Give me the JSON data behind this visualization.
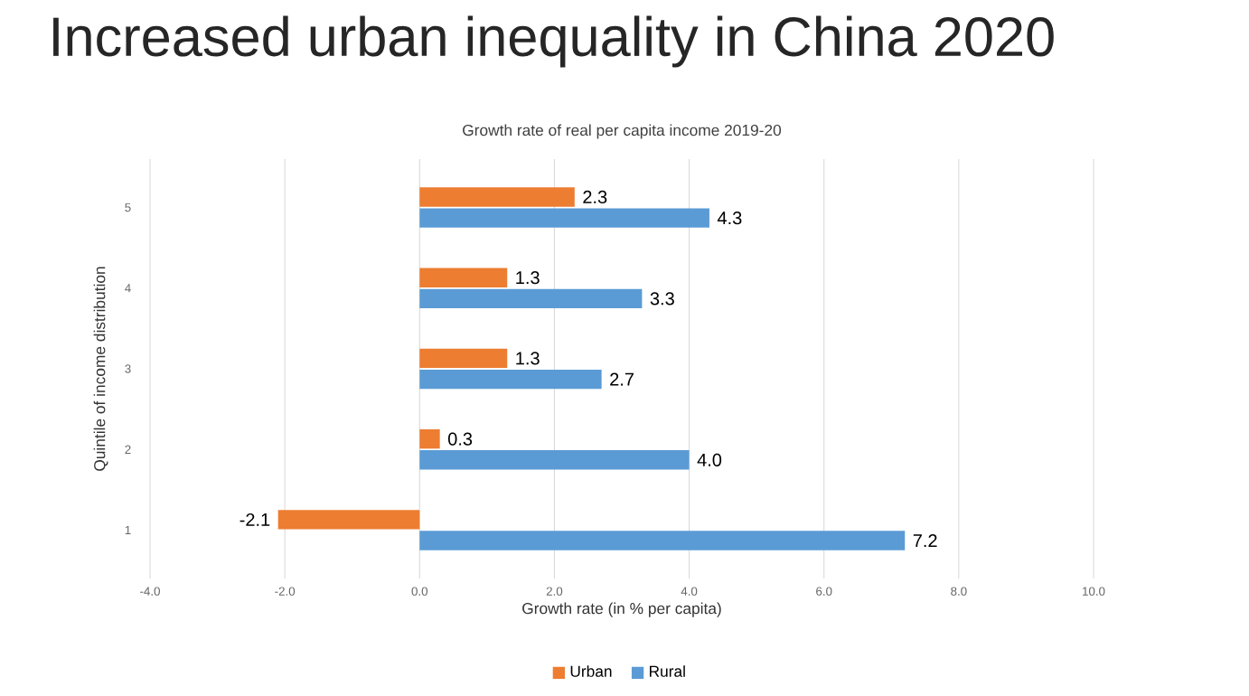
{
  "chart_data": {
    "type": "bar",
    "orientation": "horizontal",
    "title": "Increased urban inequality in China 2020",
    "subtitle": "Growth rate of real per capita income 2019-20",
    "xlabel": "Growth rate (in % per capita)",
    "ylabel": "Quintile of income distribution",
    "categories": [
      "5",
      "4",
      "3",
      "2",
      "1"
    ],
    "series": [
      {
        "name": "Urban",
        "color": "#ed7d31",
        "values": [
          2.3,
          1.3,
          1.3,
          0.3,
          -2.1
        ],
        "value_labels": [
          "2.3",
          "1.3",
          "1.3",
          "0.3",
          "-2.1"
        ]
      },
      {
        "name": "Rural",
        "color": "#5b9bd5",
        "values": [
          4.3,
          3.3,
          2.7,
          4.0,
          7.2
        ],
        "value_labels": [
          "4.3",
          "3.3",
          "2.7",
          "4.0",
          "7.2"
        ]
      }
    ],
    "xlim": [
      -4,
      10
    ],
    "xticks": [
      {
        "value": -4,
        "label": "-4.0"
      },
      {
        "value": -2,
        "label": "-2.0"
      },
      {
        "value": 0,
        "label": "0.0"
      },
      {
        "value": 2,
        "label": "2.0"
      },
      {
        "value": 4,
        "label": "4.0"
      },
      {
        "value": 6,
        "label": "6.0"
      },
      {
        "value": 8,
        "label": "8.0"
      },
      {
        "value": 10,
        "label": "10.0"
      }
    ],
    "grid": "x",
    "legend": "bottom"
  }
}
